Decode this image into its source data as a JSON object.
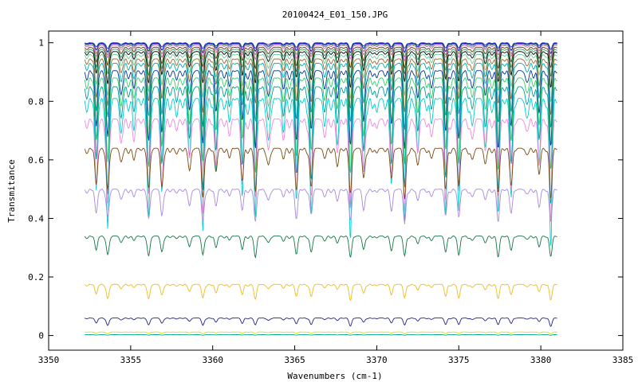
{
  "chart_data": {
    "type": "line",
    "title": "20100424_E01_150.JPG",
    "xlabel": "Wavenumbers (cm-1)",
    "ylabel": "Transmitance",
    "xlim": [
      3350,
      3385
    ],
    "ylim": [
      -0.05,
      1.04
    ],
    "x_ticks": [
      3350,
      3355,
      3360,
      3365,
      3370,
      3375,
      3380,
      3385
    ],
    "y_ticks": [
      0,
      0.2,
      0.4,
      0.6,
      0.8,
      1
    ],
    "y_tick_labels": [
      "0",
      "0.2",
      "0.4",
      "0.6",
      "0.8",
      "1"
    ],
    "x_tick_labels": [
      "3350",
      "3355",
      "3360",
      "3365",
      "3370",
      "3375",
      "3380",
      "3385"
    ],
    "grid": false,
    "legend": "none",
    "x_range_data": [
      3352.2,
      3381.0
    ],
    "absorption_lines": [
      3352.9,
      3353.6,
      3354.4,
      3355.2,
      3356.1,
      3356.9,
      3357.8,
      3358.6,
      3359.4,
      3360.2,
      3361.0,
      3361.8,
      3362.6,
      3363.4,
      3364.3,
      3365.1,
      3366.0,
      3366.8,
      3367.6,
      3368.4,
      3369.2,
      3370.0,
      3370.9,
      3371.7,
      3372.5,
      3373.3,
      3374.2,
      3375.0,
      3375.8,
      3376.6,
      3377.4,
      3378.2,
      3379.1,
      3379.9,
      3380.6
    ],
    "series": [
      {
        "color": "#1f3f8f",
        "baseline": 1.0,
        "depth": 0.02
      },
      {
        "color": "#0000cc",
        "baseline": 0.998,
        "depth": 0.03
      },
      {
        "color": "#5f9f5f",
        "baseline": 0.995,
        "depth": 0.04
      },
      {
        "color": "#cc66cc",
        "baseline": 0.992,
        "depth": 0.05
      },
      {
        "color": "#663300",
        "baseline": 0.985,
        "depth": 0.07
      },
      {
        "color": "#339966",
        "baseline": 0.978,
        "depth": 0.09
      },
      {
        "color": "#000000",
        "baseline": 0.97,
        "depth": 0.11
      },
      {
        "color": "#66cc99",
        "baseline": 0.96,
        "depth": 0.14
      },
      {
        "color": "#996633",
        "baseline": 0.945,
        "depth": 0.17
      },
      {
        "color": "#00aaaa",
        "baseline": 0.93,
        "depth": 0.21
      },
      {
        "color": "#003399",
        "baseline": 0.905,
        "depth": 0.26
      },
      {
        "color": "#33cc66",
        "baseline": 0.88,
        "depth": 0.31
      },
      {
        "color": "#009999",
        "baseline": 0.85,
        "depth": 0.37
      },
      {
        "color": "#00cccc",
        "baseline": 0.81,
        "depth": 0.44
      },
      {
        "color": "#ee88dd",
        "baseline": 0.74,
        "depth": 0.3
      },
      {
        "color": "#7a4a10",
        "baseline": 0.64,
        "depth": 0.16
      },
      {
        "color": "#aa88dd",
        "baseline": 0.5,
        "depth": 0.11
      },
      {
        "color": "#117744",
        "baseline": 0.34,
        "depth": 0.07
      },
      {
        "color": "#eebb22",
        "baseline": 0.175,
        "depth": 0.05
      },
      {
        "color": "#222288",
        "baseline": 0.06,
        "depth": 0.025
      },
      {
        "color": "#dddd00",
        "baseline": 0.012,
        "depth": 0.006
      },
      {
        "color": "#00aa88",
        "baseline": 0.003,
        "depth": 0.002
      }
    ]
  }
}
